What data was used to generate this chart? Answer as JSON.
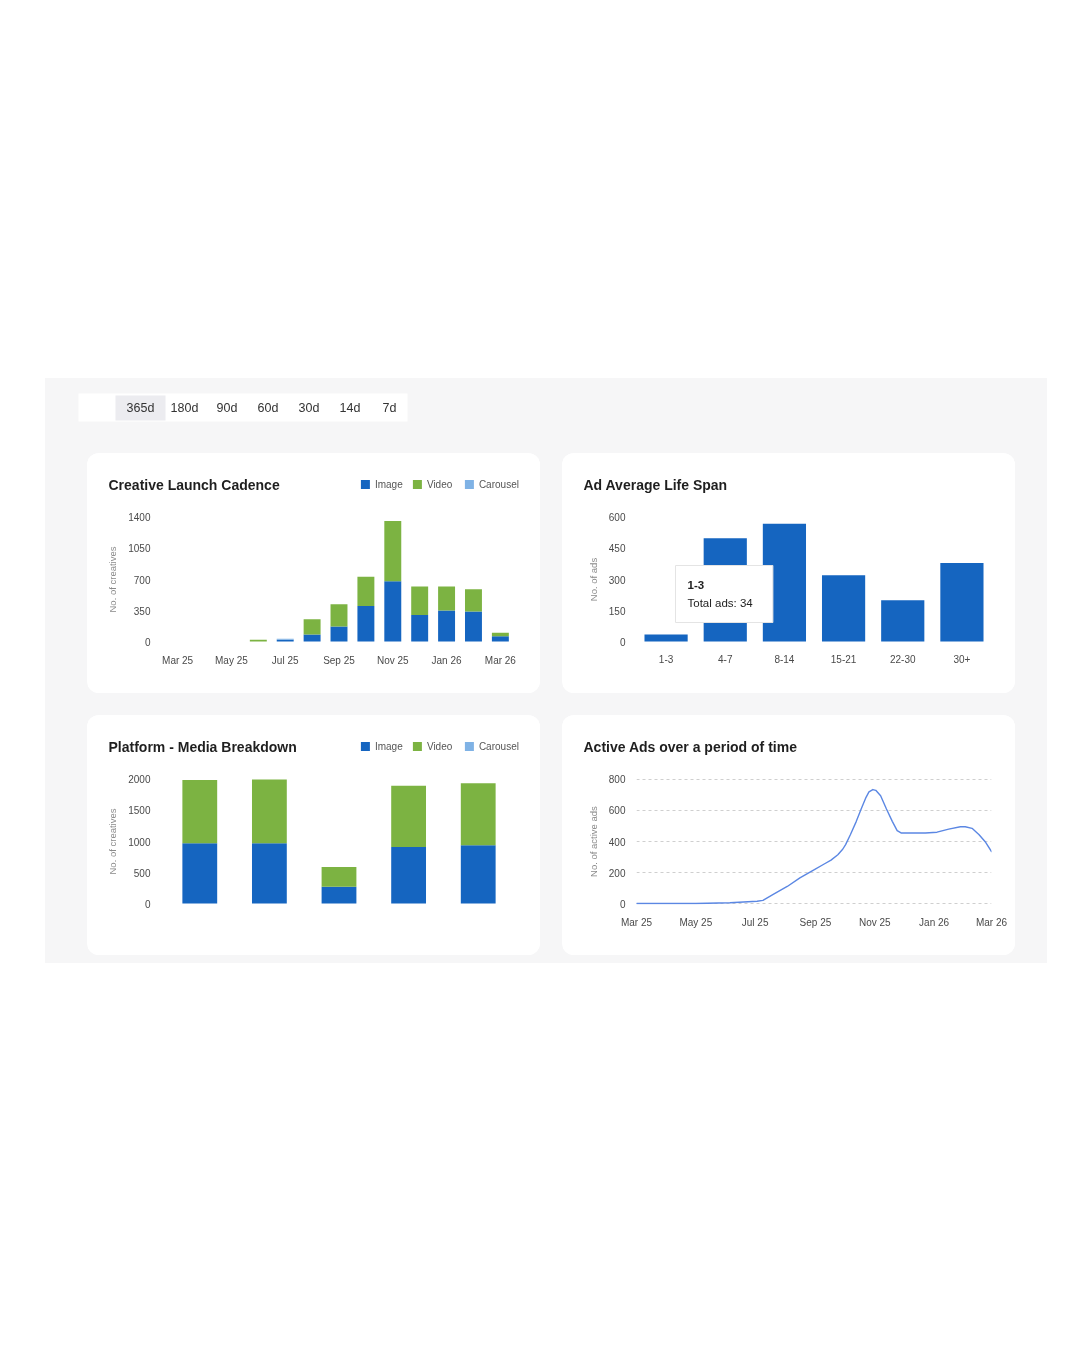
{
  "chart_data": [
    {
      "type": "other",
      "annotations": [
        "365d",
        "180d",
        "90d",
        "60d",
        "30d",
        "14d",
        "7d"
      ]
    },
    {
      "type": "bar",
      "title": "Creative Launch Cadence",
      "ylabel": "No. of creatives",
      "categories": [
        "Mar 25",
        null,
        "May 25",
        null,
        "Jul 25",
        null,
        "Sep 25",
        null,
        "Nov 25",
        null,
        "Jan 26",
        null,
        "Mar 26"
      ],
      "stacked": true,
      "series": [
        {
          "name": "Image",
          "color": "#1565c0",
          "values": [
            null,
            null,
            null,
            null,
            20,
            80,
            170,
            400,
            680,
            300,
            350,
            340,
            60
          ]
        },
        {
          "name": "Video",
          "color": "#7cb342",
          "values": [
            null,
            null,
            null,
            20,
            null,
            170,
            250,
            330,
            680,
            320,
            270,
            250,
            40
          ]
        },
        {
          "name": "Carousel",
          "color": "#7fb2e5",
          "values": [
            null,
            null,
            null,
            null,
            10,
            null,
            null,
            null,
            null,
            null,
            null,
            null,
            null
          ]
        }
      ],
      "ylim": [
        0,
        1400
      ],
      "yticks": [
        0,
        350,
        700,
        1050,
        1400
      ],
      "legend": "top right"
    },
    {
      "type": "bar",
      "title": "Ad Average Life Span",
      "ylabel": "No. of ads",
      "categories": [
        "1-3",
        "4-7",
        "8-14",
        "15-21",
        "22-30",
        "30+"
      ],
      "values": [
        34,
        500,
        570,
        320,
        200,
        380
      ],
      "color": "#1565c0",
      "ylim": [
        0,
        600
      ],
      "yticks": [
        0,
        150,
        300,
        450,
        600
      ],
      "annotations": [
        "1-3\nTotal ads: 34"
      ]
    },
    {
      "type": "bar",
      "title": "Platform - Media Breakdown",
      "ylabel": "No. of creatives",
      "categories": [
        null,
        null,
        null,
        null,
        null
      ],
      "stacked": true,
      "series": [
        {
          "name": "Image",
          "color": "#1565c0",
          "values": [
            970,
            970,
            270,
            910,
            940
          ]
        },
        {
          "name": "Video",
          "color": "#7cb342",
          "values": [
            1020,
            1030,
            320,
            990,
            1000
          ]
        },
        {
          "name": "Carousel",
          "color": "#7fb2e5",
          "values": [
            null,
            null,
            null,
            null,
            null
          ]
        }
      ],
      "ylim": [
        0,
        2000
      ],
      "yticks": [
        0,
        500,
        1000,
        1500,
        2000
      ],
      "legend": "top right"
    },
    {
      "type": "line",
      "title": "Active Ads over a period of time",
      "ylabel": "No. of active ads",
      "x": [
        "2025-03-01",
        "2025-05-01",
        "2025-06-05",
        "2025-07-03",
        "2025-07-09",
        "2025-07-20",
        "2025-08-03",
        "2025-08-16",
        "2025-08-30",
        "2025-09-10",
        "2025-09-17",
        "2025-09-24",
        "2025-09-29",
        "2025-10-02",
        "2025-10-07",
        "2025-10-13",
        "2025-10-18",
        "2025-10-23",
        "2025-10-26",
        "2025-10-30",
        "2025-11-02",
        "2025-11-07",
        "2025-11-13",
        "2025-11-19",
        "2025-11-24",
        "2025-11-28",
        "2025-12-09",
        "2025-12-23",
        "2026-01-04",
        "2026-01-16",
        "2026-01-28",
        "2026-02-02",
        "2026-02-09",
        "2026-02-16",
        "2026-02-23",
        "2026-03-01"
      ],
      "values": [
        0,
        0,
        5,
        15,
        20,
        60,
        110,
        165,
        215,
        255,
        280,
        315,
        350,
        380,
        445,
        530,
        610,
        685,
        720,
        735,
        730,
        695,
        610,
        530,
        470,
        455,
        455,
        455,
        460,
        480,
        495,
        495,
        485,
        445,
        395,
        335
      ],
      "color": "#5b87e3",
      "xlim": [
        "2025-03",
        "2026-03"
      ],
      "xticks": [
        {
          "value": "2025-03",
          "label": "Mar 25"
        },
        {
          "value": "2025-05",
          "label": "May 25"
        },
        {
          "value": "2025-07",
          "label": "Jul 25"
        },
        {
          "value": "2025-09",
          "label": "Sep 25"
        },
        {
          "value": "2025-11",
          "label": "Nov 25"
        },
        {
          "value": "2026-01",
          "label": "Jan 26"
        },
        {
          "value": "2026-03",
          "label": "Mar 26"
        }
      ],
      "ylim": [
        0,
        800
      ],
      "yticks": [
        0,
        200,
        400,
        600,
        800
      ],
      "grid": "y"
    }
  ]
}
